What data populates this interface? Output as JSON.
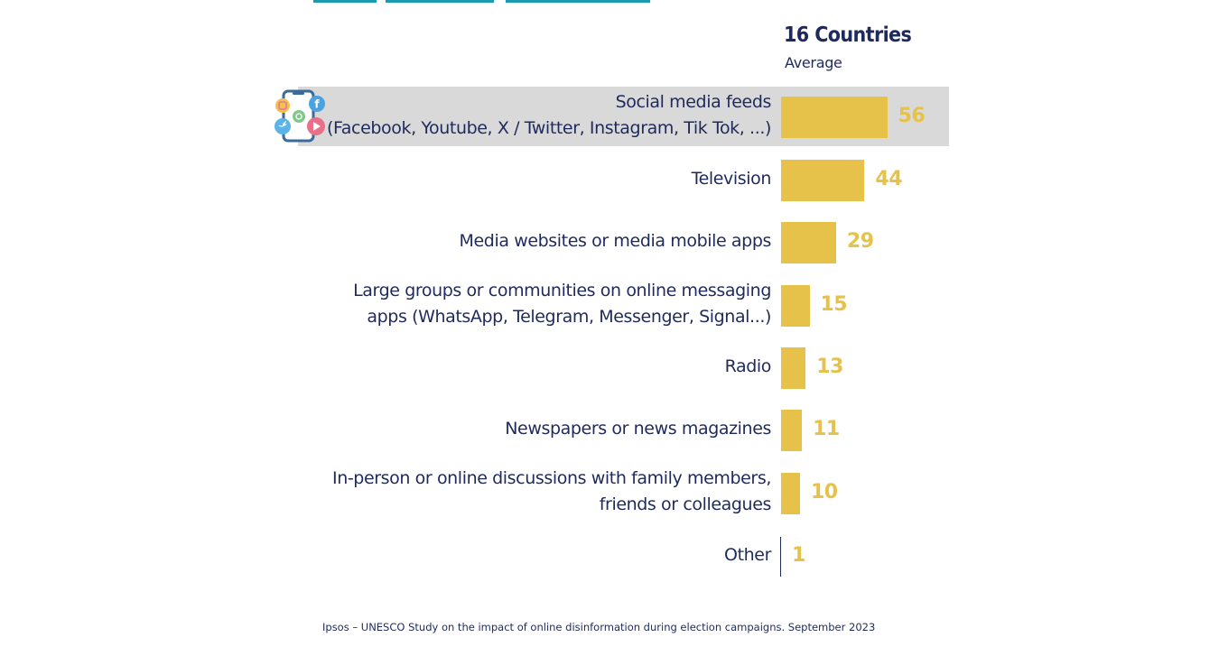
{
  "chart_data": {
    "type": "bar",
    "orientation": "horizontal",
    "title": "16 Countries",
    "subtitle": "Average",
    "categories": [
      [
        "Social media feeds",
        "(Facebook, Youtube, X / Twitter, Instagram, Tik Tok, ...)"
      ],
      [
        "Television"
      ],
      [
        "Media websites or media mobile apps"
      ],
      [
        "Large groups or communities on online messaging",
        "apps (WhatsApp, Telegram, Messenger, Signal...)"
      ],
      [
        "Radio"
      ],
      [
        "Newspapers or news magazines"
      ],
      [
        "In-person or online discussions with family members,",
        "friends or colleagues"
      ],
      [
        "Other"
      ]
    ],
    "values": [
      56,
      44,
      29,
      15,
      13,
      11,
      10,
      1
    ],
    "value_labels": [
      "56",
      "44",
      "29",
      "15",
      "13",
      "11",
      "10",
      "1"
    ],
    "highlighted_index": 0,
    "xlim": [
      0,
      100
    ],
    "bar_color": "#e6c24a",
    "highlight_color": "#d9d9d9",
    "text_color": "#1f2a5c",
    "grid": false,
    "legend": "none"
  },
  "footer": "Ipsos – UNESCO Study on the impact of online disinformation during election campaigns. September 2023",
  "icons": {
    "highlight_icon": "social-media-phone-icon"
  }
}
